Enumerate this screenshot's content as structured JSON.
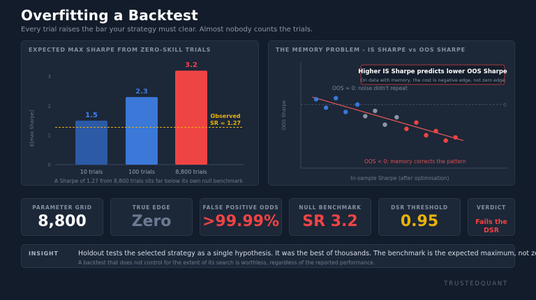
{
  "header": {
    "title": "Overfitting a Backtest",
    "subtitle": "Every trial raises the bar your strategy must clear. Almost nobody counts the trials."
  },
  "left_panel": {
    "title": "EXPECTED MAX SHARPE FROM ZERO-SKILL TRIALS",
    "caption": "A Sharpe of 1.27 from 8,800 trials sits far below its own null benchmark",
    "observed_label_line1": "Observed",
    "observed_label_line2": "SR = 1.27"
  },
  "right_panel": {
    "title": "THE MEMORY PROBLEM - IS SHARPE vs OOS SHARPE",
    "callout_title": "Higher IS Sharpe predicts lower OOS Sharpe",
    "callout_text": "On data with memory, the cost is negative edge, not zero edge",
    "zero_label": "OOS ≈ 0: noise didn't repeat",
    "neg_label": "OOS < 0: memory corrects the pattern",
    "zero_tick": "0"
  },
  "chart_data": [
    {
      "type": "bar",
      "title": "EXPECTED MAX SHARPE FROM ZERO-SKILL TRIALS",
      "categories": [
        "10 trials",
        "100 trials",
        "8,800 trials"
      ],
      "values": [
        1.5,
        2.3,
        3.2
      ],
      "value_labels": [
        "1.5",
        "2.3",
        "3.2"
      ],
      "ylabel": "E[max Sharpe]",
      "yticks": [
        "0",
        "1",
        "2",
        "3"
      ],
      "ylim": [
        0,
        3.3
      ],
      "reference_line": {
        "value": 1.27,
        "label": "Observed SR = 1.27",
        "color": "#eab308"
      },
      "bar_colors": [
        "#2c5aa6",
        "#3b78d8",
        "#ef4444"
      ]
    },
    {
      "type": "scatter",
      "title": "THE MEMORY PROBLEM - IS SHARPE vs OOS SHARPE",
      "xlabel": "In-sample Sharpe (after optimisation)",
      "ylabel": "OOS Sharpe",
      "xlim": [
        0,
        10
      ],
      "ylim": [
        -3,
        2
      ],
      "points": [
        {
          "x": 0.5,
          "y": 0.25,
          "group": "blue"
        },
        {
          "x": 1.0,
          "y": -0.15,
          "group": "blue"
        },
        {
          "x": 1.5,
          "y": 0.3,
          "group": "blue"
        },
        {
          "x": 2.0,
          "y": -0.35,
          "group": "blue"
        },
        {
          "x": 2.6,
          "y": 0.0,
          "group": "blue"
        },
        {
          "x": 3.0,
          "y": -0.55,
          "group": "gray"
        },
        {
          "x": 3.5,
          "y": -0.3,
          "group": "gray"
        },
        {
          "x": 4.0,
          "y": -0.95,
          "group": "gray"
        },
        {
          "x": 4.6,
          "y": -0.6,
          "group": "gray"
        },
        {
          "x": 5.1,
          "y": -1.15,
          "group": "red"
        },
        {
          "x": 5.6,
          "y": -0.85,
          "group": "red"
        },
        {
          "x": 6.1,
          "y": -1.45,
          "group": "red"
        },
        {
          "x": 6.6,
          "y": -1.25,
          "group": "red"
        },
        {
          "x": 7.1,
          "y": -1.7,
          "group": "red"
        },
        {
          "x": 7.6,
          "y": -1.55,
          "group": "red"
        }
      ],
      "trend_line": {
        "x1": 0.3,
        "y1": 0.35,
        "x2": 8.0,
        "y2": -1.7,
        "color": "#e05353"
      },
      "zero_line": true,
      "colors": {
        "blue": "#3b78d8",
        "gray": "#8b95a5",
        "red": "#ef4444"
      }
    }
  ],
  "kpis": [
    {
      "label": "PARAMETER GRID",
      "value": "8,800",
      "color": "#ffffff"
    },
    {
      "label": "TRUE EDGE",
      "value": "Zero",
      "color": "#6b7a92"
    },
    {
      "label": "FALSE POSITIVE ODDS",
      "value": ">99.99%",
      "color": "#ef4444"
    },
    {
      "label": "NULL BENCHMARK",
      "value": "SR 3.2",
      "color": "#ef4444"
    },
    {
      "label": "DSR THRESHOLD",
      "value": "0.95",
      "color": "#eab308"
    },
    {
      "label": "VERDICT",
      "value_line1": "Fails the",
      "value_line2": "DSR",
      "color": "#ef4444"
    }
  ],
  "insight": {
    "label": "INSIGHT",
    "main": "Holdout tests the selected strategy as a single hypothesis. It was the best of thousands. The benchmark is the expected maximum, not zero.",
    "sub": "A backtest that does not control for the extent of its search is worthless, regardless of the reported performance."
  },
  "brand": "TRUSTEDQUANT"
}
